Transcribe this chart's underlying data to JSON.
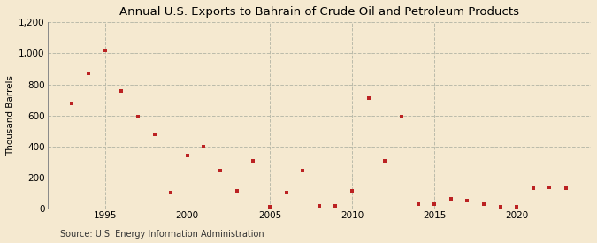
{
  "title": "Annual U.S. Exports to Bahrain of Crude Oil and Petroleum Products",
  "ylabel": "Thousand Barrels",
  "source": "Source: U.S. Energy Information Administration",
  "background_color": "#f5e9d0",
  "plot_background_color": "#f5e9d0",
  "marker_color": "#bb2222",
  "marker": "s",
  "marker_size": 3.5,
  "years": [
    1993,
    1994,
    1995,
    1996,
    1997,
    1998,
    1999,
    2000,
    2001,
    2002,
    2003,
    2004,
    2005,
    2006,
    2007,
    2008,
    2009,
    2010,
    2011,
    2012,
    2013,
    2014,
    2015,
    2016,
    2017,
    2018,
    2019,
    2020,
    2021,
    2022,
    2023
  ],
  "values": [
    680,
    870,
    1020,
    760,
    590,
    480,
    100,
    340,
    400,
    245,
    115,
    310,
    10,
    100,
    245,
    20,
    20,
    115,
    710,
    310,
    590,
    30,
    30,
    60,
    50,
    30,
    10,
    10,
    130,
    135,
    130
  ],
  "ylim": [
    0,
    1200
  ],
  "yticks": [
    0,
    200,
    400,
    600,
    800,
    1000,
    1200
  ],
  "xlim": [
    1991.5,
    2024.5
  ],
  "xticks": [
    1995,
    2000,
    2005,
    2010,
    2015,
    2020
  ],
  "grid_color": "#bbbbaa",
  "grid_linestyle": "--",
  "title_fontsize": 9.5,
  "label_fontsize": 7.5,
  "tick_fontsize": 7.5,
  "source_fontsize": 7
}
